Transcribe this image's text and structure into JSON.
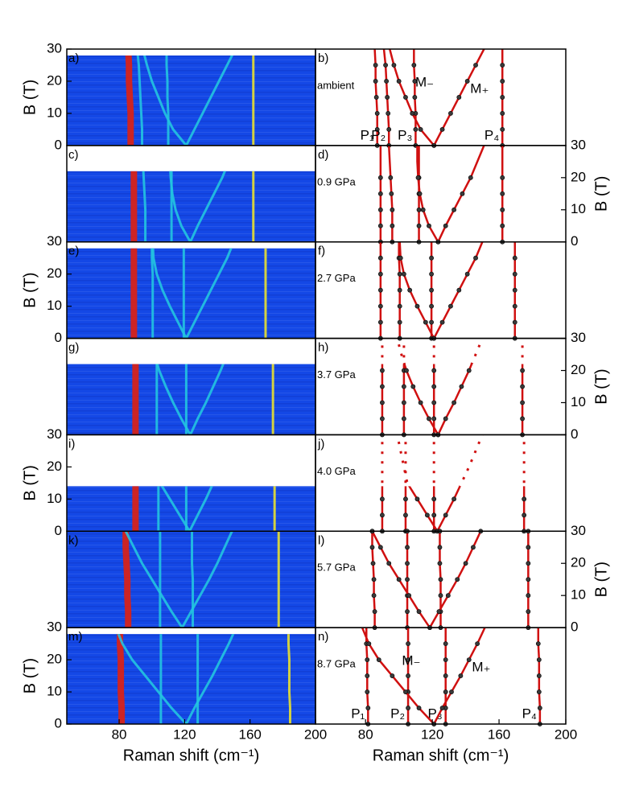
{
  "chart_data": [
    {
      "type": "heatmap",
      "label": "a)",
      "xlim": [
        48,
        200
      ],
      "ylim": [
        0,
        30
      ],
      "yticks": [
        0,
        10,
        20,
        30
      ],
      "ylabel": "B (T)",
      "bmax": 28,
      "colormap": [
        "#1448e6",
        "#22c4e0",
        "#e8e030",
        "#e02010"
      ]
    },
    {
      "type": "line",
      "label": "b)",
      "pressure": "ambient",
      "xlim": [
        50,
        200
      ],
      "ylim": [
        0,
        30
      ],
      "fields": [
        0,
        5,
        10,
        15,
        20,
        25,
        30
      ],
      "bmax": 28,
      "line_color": "#d01010",
      "point_color": "#3a3a3a",
      "series": [
        {
          "name": "P₁",
          "values": [
            87,
            87,
            87,
            86.5,
            86,
            86,
            85.5
          ]
        },
        {
          "name": "P₂",
          "values": [
            94,
            94,
            93.5,
            93,
            92.5,
            92,
            91
          ]
        },
        {
          "name": "P₃",
          "values": [
            110,
            110,
            110,
            109.5,
            109.5,
            109,
            109
          ]
        },
        {
          "name": "M₋",
          "values": [
            121,
            113,
            108,
            104,
            100,
            97,
            94.5
          ]
        },
        {
          "name": "M₊",
          "values": [
            121,
            126,
            131,
            136,
            141,
            146,
            151
          ]
        },
        {
          "name": "P₄",
          "values": [
            162,
            162,
            162,
            162,
            162,
            162,
            162
          ]
        }
      ]
    },
    {
      "type": "heatmap",
      "label": "c)",
      "xlim": [
        48,
        200
      ],
      "ylim": [
        0,
        30
      ],
      "bmax": 22,
      "colormap": [
        "#1448e6",
        "#22c4e0",
        "#e8e030",
        "#e02010"
      ]
    },
    {
      "type": "line",
      "label": "d)",
      "pressure": "0.9 GPa",
      "xlim": [
        50,
        200
      ],
      "ylim": [
        0,
        30
      ],
      "yticks": [
        0,
        10,
        20,
        30
      ],
      "ylabel": "B (T)",
      "fields": [
        0,
        5,
        10,
        15,
        20,
        25,
        30
      ],
      "bmax": 22,
      "line_color": "#d01010",
      "point_color": "#3a3a3a",
      "series": [
        {
          "values": [
            89,
            89,
            89,
            89,
            89,
            89,
            89
          ]
        },
        {
          "values": [
            96,
            96,
            96,
            95.5,
            95,
            94.5,
            94
          ]
        },
        {
          "values": [
            112,
            112,
            112,
            112,
            112,
            112,
            112
          ]
        },
        {
          "values": [
            123.5,
            118,
            114.5,
            112.5,
            111.5,
            111,
            111
          ]
        },
        {
          "values": [
            123.5,
            128,
            133,
            138,
            143,
            147,
            151
          ]
        },
        {
          "values": [
            162,
            162,
            162,
            162,
            162,
            162,
            162
          ]
        }
      ]
    },
    {
      "type": "heatmap",
      "label": "e)",
      "xlim": [
        48,
        200
      ],
      "ylim": [
        0,
        30
      ],
      "yticks": [
        0,
        10,
        20,
        30
      ],
      "ylabel": "B (T)",
      "bmax": 28,
      "colormap": [
        "#1448e6",
        "#22c4e0",
        "#e8e030",
        "#e02010"
      ]
    },
    {
      "type": "line",
      "label": "f)",
      "pressure": "2.7 GPa",
      "xlim": [
        50,
        200
      ],
      "ylim": [
        0,
        30
      ],
      "fields": [
        0,
        5,
        10,
        15,
        20,
        25,
        30
      ],
      "bmax": 28,
      "line_color": "#d01010",
      "point_color": "#3a3a3a",
      "series": [
        {
          "values": [
            89,
            89,
            89,
            89,
            89,
            89,
            89
          ]
        },
        {
          "values": [
            100.5,
            100.5,
            100.5,
            100.5,
            100.5,
            100,
            100
          ]
        },
        {
          "values": [
            119.5,
            119.5,
            119.5,
            119.5,
            119.5,
            119.5,
            119.5
          ]
        },
        {
          "values": [
            121,
            116,
            111,
            106.5,
            103,
            101,
            100.5
          ]
        },
        {
          "values": [
            121,
            126,
            131,
            136,
            141,
            146,
            150
          ]
        },
        {
          "values": [
            169.5,
            169.5,
            169.5,
            169.5,
            169.5,
            169.5,
            169.5
          ]
        }
      ]
    },
    {
      "type": "heatmap",
      "label": "g)",
      "xlim": [
        48,
        200
      ],
      "ylim": [
        0,
        30
      ],
      "bmax": 22,
      "colormap": [
        "#1448e6",
        "#22c4e0",
        "#e8e030",
        "#e02010"
      ]
    },
    {
      "type": "line",
      "label": "h)",
      "pressure": "3.7 GPa",
      "xlim": [
        50,
        200
      ],
      "ylim": [
        0,
        30
      ],
      "yticks": [
        0,
        10,
        20,
        30
      ],
      "ylabel": "B (T)",
      "fields": [
        0,
        5,
        10,
        15,
        20,
        25,
        30
      ],
      "bmax": 22,
      "dotted_above_bmax": true,
      "line_color": "#d01010",
      "point_color": "#3a3a3a",
      "series": [
        {
          "values": [
            90,
            90,
            90,
            90,
            90,
            90,
            90
          ]
        },
        {
          "values": [
            103,
            103,
            103,
            103,
            103,
            103,
            103
          ]
        },
        {
          "values": [
            121,
            121,
            121,
            121,
            121,
            121,
            121
          ]
        },
        {
          "values": [
            123.5,
            118,
            113,
            108.5,
            104.5,
            101.5,
            99
          ]
        },
        {
          "values": [
            123.5,
            128,
            133,
            137.5,
            142,
            146,
            150
          ]
        },
        {
          "values": [
            174,
            174,
            174,
            174,
            174,
            174,
            174
          ]
        }
      ]
    },
    {
      "type": "heatmap",
      "label": "i)",
      "xlim": [
        48,
        200
      ],
      "ylim": [
        0,
        30
      ],
      "yticks": [
        0,
        10,
        20,
        30
      ],
      "ylabel": "B (T)",
      "bmax": 14,
      "colormap": [
        "#1448e6",
        "#22c4e0",
        "#e8e030",
        "#e02010"
      ]
    },
    {
      "type": "line",
      "label": "j)",
      "pressure": "4.0 GPa",
      "xlim": [
        50,
        200
      ],
      "ylim": [
        0,
        30
      ],
      "fields": [
        0,
        5,
        10,
        15,
        20,
        25,
        30
      ],
      "bmax": 14,
      "dotted_above_bmax": true,
      "line_color": "#d01010",
      "point_color": "#3a3a3a",
      "series": [
        {
          "values": [
            90,
            90,
            90,
            90,
            90,
            90,
            90
          ]
        },
        {
          "values": [
            104,
            104,
            104,
            104,
            104,
            104,
            104
          ]
        },
        {
          "values": [
            121,
            121,
            121,
            121,
            121,
            121,
            121
          ]
        },
        {
          "values": [
            123,
            117,
            111,
            105,
            103,
            101,
            99
          ]
        },
        {
          "values": [
            123,
            128,
            133,
            137.5,
            142,
            146,
            150
          ]
        },
        {
          "values": [
            175,
            175,
            175,
            175,
            175,
            175,
            175
          ]
        }
      ]
    },
    {
      "type": "heatmap",
      "label": "k)",
      "xlim": [
        48,
        200
      ],
      "ylim": [
        0,
        30
      ],
      "bmax": 30,
      "colormap": [
        "#1448e6",
        "#22c4e0",
        "#e8e030",
        "#e02010"
      ]
    },
    {
      "type": "line",
      "label": "l)",
      "pressure": "5.7 GPa",
      "xlim": [
        50,
        200
      ],
      "ylim": [
        0,
        30
      ],
      "yticks": [
        0,
        10,
        20,
        30
      ],
      "ylabel": "B (T)",
      "fields": [
        0,
        5,
        10,
        15,
        20,
        25,
        30
      ],
      "bmax": 30,
      "line_color": "#d01010",
      "point_color": "#3a3a3a",
      "series": [
        {
          "values": [
            85.5,
            85.5,
            85,
            85,
            84.5,
            84,
            84
          ]
        },
        {
          "values": [
            105,
            105,
            105,
            105,
            105,
            105,
            105
          ]
        },
        {
          "values": [
            125,
            125,
            125,
            125,
            124.5,
            124.5,
            124.5
          ]
        },
        {
          "values": [
            118.5,
            112,
            106,
            100,
            94,
            89,
            84
          ]
        },
        {
          "values": [
            118.5,
            124,
            129.5,
            135,
            140,
            144.5,
            149
          ]
        },
        {
          "values": [
            177.5,
            177.5,
            177.5,
            177.5,
            177.5,
            177.5,
            177.5
          ]
        }
      ]
    },
    {
      "type": "heatmap",
      "label": "m)",
      "xlim": [
        48,
        200
      ],
      "ylim": [
        0,
        30
      ],
      "yticks": [
        0,
        10,
        20,
        30
      ],
      "ylabel": "B (T)",
      "bmax": 28,
      "xticks": [
        80,
        120,
        160,
        200
      ],
      "xlabel": "Raman shift (cm⁻¹)",
      "colormap": [
        "#1448e6",
        "#22c4e0",
        "#e8e030",
        "#e02010"
      ]
    },
    {
      "type": "line",
      "label": "n)",
      "pressure": "8.7 GPa",
      "xlim": [
        50,
        200
      ],
      "ylim": [
        0,
        30
      ],
      "xticks": [
        80,
        120,
        160,
        200
      ],
      "xlabel": "Raman shift (cm⁻¹)",
      "fields": [
        0,
        5,
        10,
        15,
        20,
        25,
        30
      ],
      "bmax": 28,
      "line_color": "#d01010",
      "point_color": "#3a3a3a",
      "series": [
        {
          "name": "P₁",
          "values": [
            81.5,
            81.5,
            81,
            81,
            81,
            80.5,
            80.5
          ]
        },
        {
          "name": "P₂",
          "values": [
            105.5,
            105.5,
            105.5,
            105.5,
            105.5,
            105.5,
            105.5
          ]
        },
        {
          "name": "P₃",
          "values": [
            128,
            128,
            128,
            128,
            128,
            128,
            128
          ]
        },
        {
          "name": "M₋",
          "values": [
            121,
            112,
            104,
            96,
            88,
            82,
            78
          ]
        },
        {
          "name": "M₊",
          "values": [
            121,
            126,
            131.5,
            137,
            142,
            147,
            151.5
          ]
        },
        {
          "name": "P₄",
          "values": [
            184.5,
            184.5,
            184,
            184,
            184,
            183.5,
            183.5
          ]
        }
      ]
    }
  ]
}
